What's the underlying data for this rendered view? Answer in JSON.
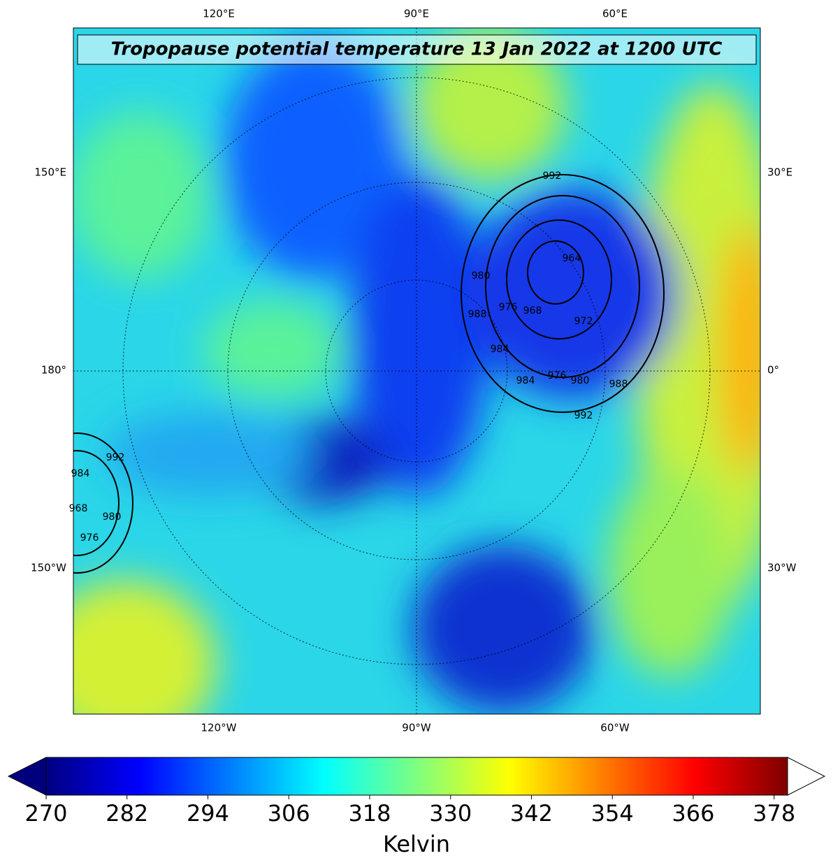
{
  "title": "Tropopause potential temperature 13 Jan 2022 at 1200 UTC",
  "map": {
    "top_labels": [
      "120°E",
      "90°E",
      "60°E"
    ],
    "bottom_labels": [
      "120°W",
      "90°W",
      "60°W"
    ],
    "left_labels": [
      "150°E",
      "180°",
      "150°W"
    ],
    "right_labels": [
      "30°E",
      "0°",
      "30°W"
    ],
    "contour_labels": [
      992,
      964,
      980,
      976,
      968,
      972,
      988,
      984,
      984,
      976,
      980,
      988,
      992,
      992,
      984,
      968,
      980,
      976
    ]
  },
  "colorbar": {
    "label": "Kelvin",
    "colormap": "jet",
    "extend": "both",
    "lim": [
      270,
      380
    ],
    "ticks": [
      270,
      282,
      294,
      306,
      318,
      330,
      342,
      354,
      366,
      378
    ]
  }
}
